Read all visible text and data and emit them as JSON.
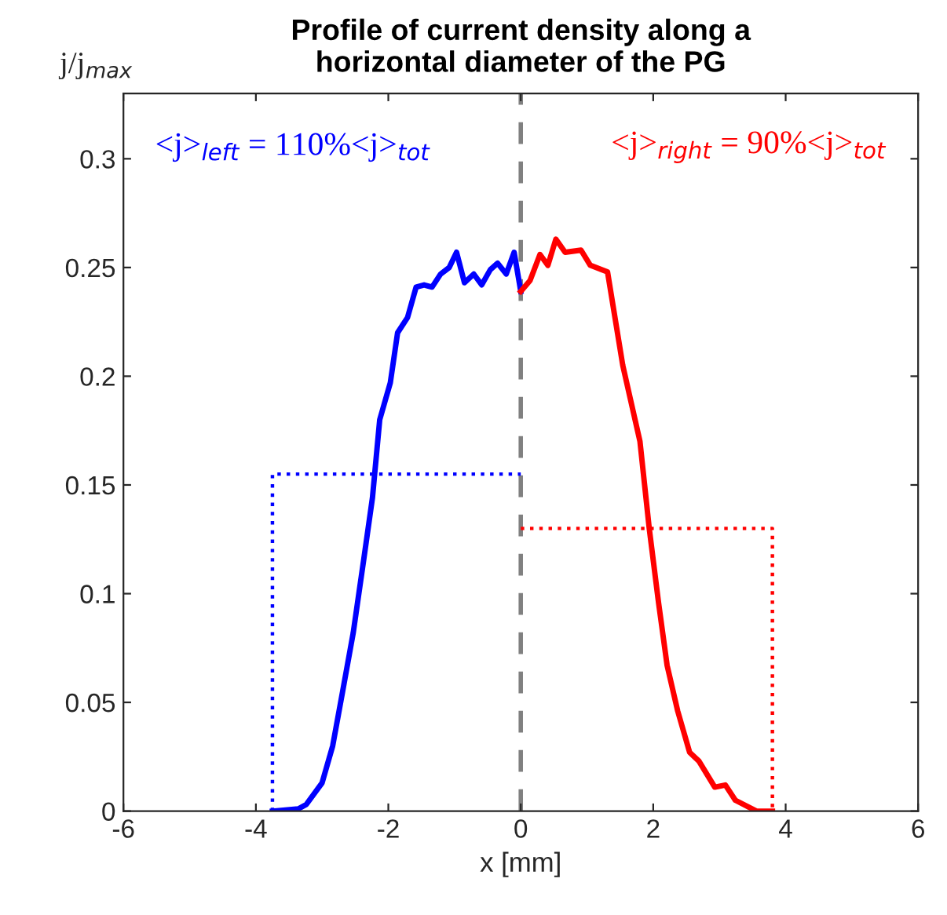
{
  "chart_data": {
    "type": "line",
    "title": "Profile of current density along a\nhorizontal diameter of the PG",
    "xlabel": "x [mm]",
    "ylabel": "j/j$_{max}$",
    "xlim": [
      -6,
      6
    ],
    "xticks": [
      -6,
      -4,
      -2,
      0,
      2,
      4,
      6
    ],
    "ylim": [
      0,
      0.33
    ],
    "yticks": [
      0,
      0.05,
      0.1,
      0.15,
      0.2,
      0.25,
      0.3
    ],
    "grid": false,
    "legend": false,
    "marker": "none",
    "series": [
      {
        "color": "#0000ff",
        "line_style": "solid",
        "x": [
          -3.75,
          -3.36,
          -3.24,
          -3.0,
          -2.84,
          -2.69,
          -2.53,
          -2.37,
          -2.24,
          -2.13,
          -1.97,
          -1.86,
          -1.71,
          -1.58,
          -1.46,
          -1.34,
          -1.21,
          -1.08,
          -0.97,
          -0.85,
          -0.71,
          -0.59,
          -0.46,
          -0.35,
          -0.22,
          -0.1,
          0.0
        ],
        "values": [
          0,
          0.001,
          0.003,
          0.013,
          0.03,
          0.055,
          0.082,
          0.116,
          0.144,
          0.18,
          0.197,
          0.22,
          0.227,
          0.241,
          0.242,
          0.241,
          0.247,
          0.25,
          0.257,
          0.243,
          0.247,
          0.242,
          0.249,
          0.252,
          0.247,
          0.257,
          0.239
        ]
      },
      {
        "color": "#ff0000",
        "line_style": "solid",
        "x": [
          0.0,
          0.14,
          0.29,
          0.41,
          0.53,
          0.67,
          0.91,
          1.05,
          1.31,
          1.54,
          1.8,
          1.94,
          2.08,
          2.21,
          2.37,
          2.55,
          2.69,
          2.93,
          3.09,
          3.24,
          3.56,
          3.8
        ],
        "values": [
          0.239,
          0.244,
          0.256,
          0.251,
          0.263,
          0.257,
          0.258,
          0.251,
          0.248,
          0.205,
          0.17,
          0.13,
          0.096,
          0.067,
          0.046,
          0.027,
          0.023,
          0.011,
          0.012,
          0.005,
          0,
          0
        ]
      },
      {
        "color": "#0000ff",
        "line_style": "dotted",
        "x": [
          -3.75,
          -3.75,
          0.0
        ],
        "values": [
          0,
          0.155,
          0.155
        ]
      },
      {
        "color": "#ff0000",
        "line_style": "dotted",
        "x": [
          0.0,
          3.8,
          3.8
        ],
        "values": [
          0.13,
          0.13,
          0
        ]
      }
    ],
    "ref_lines": [
      {
        "axis": "x",
        "value": 0,
        "color": "#808080",
        "line_style": "dashed"
      }
    ],
    "annotations": [
      "<j>$_{left}$ = 110%<j>$_{tot}$",
      "<j>$_{right}$ = 90%<j>$_{tot}$"
    ]
  }
}
